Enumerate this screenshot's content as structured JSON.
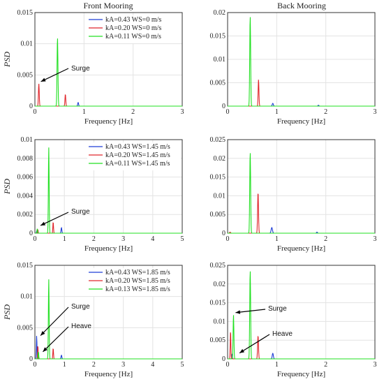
{
  "figure": {
    "columns": [
      "Front Mooring",
      "Back Mooring"
    ],
    "xlabel": "Frequency [Hz]",
    "ylabel": "PSD"
  },
  "colors": {
    "kA_043": "#1f3fd6",
    "kA_020": "#e0262c",
    "kA_small": "#22e022"
  },
  "chart_data": [
    {
      "type": "line",
      "title": "Front Mooring",
      "xlabel": "Frequency [Hz]",
      "ylabel": "PSD",
      "xlim": [
        0,
        3
      ],
      "ylim": [
        0,
        0.015
      ],
      "xticks": [
        "0",
        "1",
        "2",
        "3"
      ],
      "yticks": [
        "0",
        "0.005",
        "0.01",
        "0.015"
      ],
      "grid": true,
      "legend": "top-right",
      "series": [
        {
          "name": "kA=0.43 WS=0 m/s",
          "color": "#1f3fd6",
          "peaks": [
            {
              "f": 0.88,
              "psd": 0.0006,
              "w": 0.02
            }
          ]
        },
        {
          "name": "kA=0.20 WS=0 m/s",
          "color": "#e0262c",
          "peaks": [
            {
              "f": 0.08,
              "psd": 0.0036,
              "w": 0.018
            },
            {
              "f": 0.62,
              "psd": 0.0019,
              "w": 0.018
            }
          ]
        },
        {
          "name": "kA=0.11 WS=0 m/s",
          "color": "#22e022",
          "peaks": [
            {
              "f": 0.46,
              "psd": 0.011,
              "w": 0.02
            }
          ]
        }
      ],
      "annotations": [
        {
          "text": "Surge",
          "target_x": 0.08,
          "target_y": 0.0036
        }
      ]
    },
    {
      "type": "line",
      "title": "Back Mooring",
      "xlabel": "Frequency [Hz]",
      "ylabel": "",
      "xlim": [
        0,
        3
      ],
      "ylim": [
        0,
        0.02
      ],
      "xticks": [
        "0",
        "1",
        "2",
        "3"
      ],
      "yticks": [
        "0",
        "0.005",
        "0.01",
        "0.015",
        "0.02"
      ],
      "grid": true,
      "series": [
        {
          "color": "#1f3fd6",
          "peaks": [
            {
              "f": 0.92,
              "psd": 0.0006,
              "w": 0.025
            },
            {
              "f": 1.85,
              "psd": 0.0002,
              "w": 0.02
            }
          ]
        },
        {
          "color": "#e0262c",
          "peaks": [
            {
              "f": 0.63,
              "psd": 0.0057,
              "w": 0.018
            }
          ]
        },
        {
          "color": "#22e022",
          "peaks": [
            {
              "f": 0.46,
              "psd": 0.0193,
              "w": 0.02
            }
          ]
        }
      ]
    },
    {
      "type": "line",
      "title": "",
      "xlabel": "Frequency [Hz]",
      "ylabel": "PSD",
      "xlim": [
        0,
        5
      ],
      "ylim": [
        0,
        0.01
      ],
      "xticks": [
        "0",
        "1",
        "2",
        "3",
        "4",
        "5"
      ],
      "yticks": [
        "0",
        "0.002",
        "0.004",
        "0.006",
        "0.008",
        "0.01"
      ],
      "grid": true,
      "legend": "top-right",
      "series": [
        {
          "name": "kA=0.43 WS=1.45 m/s",
          "color": "#1f3fd6",
          "peaks": [
            {
              "f": 0.9,
              "psd": 0.0006,
              "w": 0.03
            },
            {
              "f": 0.06,
              "psd": 0.0002,
              "w": 0.02
            }
          ]
        },
        {
          "name": "kA=0.20 WS=1.45 m/s",
          "color": "#e0262c",
          "peaks": [
            {
              "f": 0.62,
              "psd": 0.0012,
              "w": 0.025
            },
            {
              "f": 0.1,
              "psd": 0.0004,
              "w": 0.02
            }
          ]
        },
        {
          "name": "kA=0.11 WS=1.45 m/s",
          "color": "#22e022",
          "peaks": [
            {
              "f": 0.47,
              "psd": 0.0092,
              "w": 0.028
            },
            {
              "f": 0.08,
              "psd": 0.0005,
              "w": 0.02
            }
          ]
        }
      ],
      "annotations": [
        {
          "text": "Surge",
          "target_x": 0.12,
          "target_y": 0.0006
        }
      ]
    },
    {
      "type": "line",
      "title": "",
      "xlabel": "Frequency [Hz]",
      "ylabel": "",
      "xlim": [
        0,
        3
      ],
      "ylim": [
        0,
        0.025
      ],
      "xticks": [
        "0",
        "1",
        "2",
        "3"
      ],
      "yticks": [
        "0",
        "0.005",
        "0.01",
        "0.015",
        "0.02",
        "0.025"
      ],
      "grid": true,
      "series": [
        {
          "color": "#1f3fd6",
          "peaks": [
            {
              "f": 0.9,
              "psd": 0.0015,
              "w": 0.03
            },
            {
              "f": 1.82,
              "psd": 0.0003,
              "w": 0.02
            }
          ]
        },
        {
          "color": "#e0262c",
          "peaks": [
            {
              "f": 0.62,
              "psd": 0.011,
              "w": 0.02
            },
            {
              "f": 0.05,
              "psd": 0.0003,
              "w": 0.02
            }
          ]
        },
        {
          "color": "#22e022",
          "peaks": [
            {
              "f": 0.46,
              "psd": 0.0217,
              "w": 0.02
            }
          ]
        }
      ]
    },
    {
      "type": "line",
      "title": "",
      "xlabel": "Frequency [Hz]",
      "ylabel": "PSD",
      "xlim": [
        0,
        5
      ],
      "ylim": [
        0,
        0.015
      ],
      "xticks": [
        "0",
        "1",
        "2",
        "3",
        "4",
        "5"
      ],
      "yticks": [
        "0",
        "0.005",
        "0.01",
        "0.015"
      ],
      "grid": true,
      "legend": "top-right",
      "series": [
        {
          "name": "kA=0.43 WS=1.85 m/s",
          "color": "#1f3fd6",
          "peaks": [
            {
              "f": 0.06,
              "psd": 0.0038,
              "w": 0.02
            },
            {
              "f": 0.9,
              "psd": 0.0006,
              "w": 0.03
            }
          ]
        },
        {
          "name": "kA=0.20 WS=1.85 m/s",
          "color": "#e0262c",
          "peaks": [
            {
              "f": 0.1,
              "psd": 0.0022,
              "w": 0.02
            },
            {
              "f": 0.62,
              "psd": 0.0017,
              "w": 0.025
            }
          ]
        },
        {
          "name": "kA=0.13 WS=1.85 m/s",
          "color": "#22e022",
          "peaks": [
            {
              "f": 0.47,
              "psd": 0.0128,
              "w": 0.028
            },
            {
              "f": 0.12,
              "psd": 0.0012,
              "w": 0.02
            }
          ]
        }
      ],
      "annotations": [
        {
          "text": "Surge",
          "target_x": 0.12,
          "target_y": 0.0034
        },
        {
          "text": "Heave",
          "target_x": 0.2,
          "target_y": 0.0008
        }
      ]
    },
    {
      "type": "line",
      "title": "",
      "xlabel": "Frequency [Hz]",
      "ylabel": "",
      "xlim": [
        0,
        3
      ],
      "ylim": [
        0,
        0.025
      ],
      "xticks": [
        "0",
        "1",
        "2",
        "3"
      ],
      "yticks": [
        "0",
        "0.005",
        "0.01",
        "0.015",
        "0.02",
        "0.025"
      ],
      "grid": true,
      "series": [
        {
          "color": "#1f3fd6",
          "peaks": [
            {
              "f": 0.92,
              "psd": 0.0015,
              "w": 0.025
            },
            {
              "f": 0.09,
              "psd": 0.0013,
              "w": 0.015
            }
          ]
        },
        {
          "color": "#e0262c",
          "peaks": [
            {
              "f": 0.62,
              "psd": 0.0062,
              "w": 0.02
            },
            {
              "f": 0.06,
              "psd": 0.0075,
              "w": 0.015
            }
          ]
        },
        {
          "color": "#22e022",
          "peaks": [
            {
              "f": 0.46,
              "psd": 0.0237,
              "w": 0.02
            },
            {
              "f": 0.12,
              "psd": 0.0118,
              "w": 0.018
            }
          ]
        }
      ],
      "annotations": [
        {
          "text": "Surge",
          "target_x": 0.12,
          "target_y": 0.0118
        },
        {
          "text": "Heave",
          "target_x": 0.2,
          "target_y": 0.001
        }
      ]
    }
  ]
}
